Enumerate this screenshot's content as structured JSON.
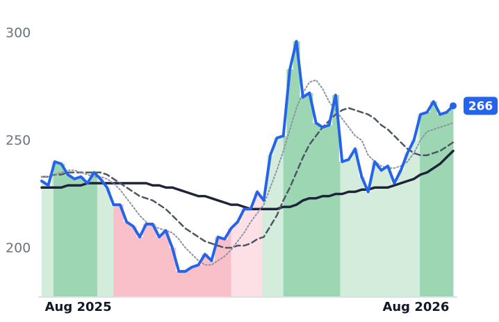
{
  "chart_data": {
    "type": "line",
    "x": [
      0,
      1,
      2,
      3,
      4,
      5,
      6,
      7,
      8,
      9,
      10,
      11,
      12,
      13,
      14,
      15,
      16,
      17,
      18,
      19,
      20,
      21,
      22,
      23,
      24,
      25,
      26,
      27,
      28,
      29,
      30,
      31,
      32,
      33,
      34,
      35,
      36,
      37,
      38,
      39,
      40,
      41,
      42,
      43,
      44,
      45,
      46,
      47,
      48,
      49,
      50,
      51,
      52,
      53,
      54,
      55,
      56,
      57,
      58,
      59,
      60,
      61,
      62,
      63
    ],
    "xlim": [
      0,
      63
    ],
    "xticks": [
      {
        "value": 5.6,
        "label": "Aug 2025"
      },
      {
        "value": 57.3,
        "label": "Aug 2026"
      }
    ],
    "ylim": [
      177.4,
      315.2
    ],
    "yticks": [
      200,
      250,
      300
    ],
    "regions": [
      {
        "from": 0,
        "to": 1.8,
        "color": "#d3ecdc"
      },
      {
        "from": 1.8,
        "to": 8.5,
        "color": "#9dd6b2"
      },
      {
        "from": 8.5,
        "to": 11,
        "color": "#d3ecdc"
      },
      {
        "from": 11,
        "to": 29,
        "color": "#f9c0ca"
      },
      {
        "from": 29,
        "to": 33.8,
        "color": "#fde0e5"
      },
      {
        "from": 33.8,
        "to": 37,
        "color": "#d3ecdc"
      },
      {
        "from": 37,
        "to": 45.7,
        "color": "#9dd6b2"
      },
      {
        "from": 45.7,
        "to": 57.9,
        "color": "#d3ecdc"
      },
      {
        "from": 57.9,
        "to": 63,
        "color": "#9dd6b2"
      }
    ],
    "series": [
      {
        "color": "#1e2338",
        "style": "solid",
        "width": 3.5,
        "values": [
          228,
          228,
          228,
          228,
          229,
          229,
          229,
          230,
          230,
          230,
          230,
          230,
          230,
          230,
          230,
          230,
          230,
          229,
          229,
          228,
          228,
          227,
          226,
          225,
          224,
          224,
          223,
          222,
          221,
          220,
          220,
          219,
          218,
          218,
          218,
          218,
          218,
          219,
          219,
          220,
          222,
          223,
          223,
          224,
          224,
          225,
          225,
          226,
          226,
          227,
          227,
          228,
          228,
          228,
          229,
          230,
          231,
          232,
          234,
          235,
          237,
          239,
          242,
          245
        ]
      },
      {
        "color": "#4b5563",
        "style": "dashed",
        "width": 2.5,
        "values": [
          233,
          233,
          234,
          234,
          235,
          235,
          235,
          235,
          235,
          235,
          234,
          232,
          230,
          228,
          226,
          224,
          223,
          222,
          220,
          218,
          215,
          212,
          209,
          207,
          205,
          203,
          202,
          201,
          200,
          200,
          201,
          201,
          202,
          204,
          205,
          210,
          215,
          222,
          228,
          235,
          242,
          248,
          252,
          256,
          259,
          262,
          264,
          265,
          264,
          263,
          262,
          260,
          257,
          255,
          252,
          249,
          246,
          244,
          243,
          243,
          244,
          245,
          247,
          249
        ]
      },
      {
        "color": "#8a94a6",
        "style": "dotted",
        "width": 2,
        "values": [
          233,
          233,
          234,
          235,
          236,
          236,
          235,
          234,
          233,
          233,
          232,
          230,
          227,
          223,
          219,
          215,
          212,
          210,
          209,
          208,
          207,
          204,
          200,
          197,
          194,
          192,
          192,
          194,
          196,
          199,
          203,
          207,
          212,
          216,
          220,
          228,
          236,
          245,
          255,
          265,
          272,
          277,
          278,
          274,
          268,
          264,
          260,
          256,
          252,
          250,
          243,
          240,
          238,
          237,
          237,
          238,
          240,
          244,
          250,
          254,
          255,
          256,
          257,
          258
        ]
      },
      {
        "color": "#2563eb",
        "style": "solid",
        "width": 4,
        "latest": true,
        "values": [
          231,
          229,
          240,
          239,
          234,
          232,
          233,
          230,
          235,
          232,
          228,
          220,
          220,
          212,
          210,
          205,
          211,
          211,
          205,
          208,
          200,
          189,
          189,
          191,
          192,
          197,
          194,
          205,
          204,
          209,
          212,
          218,
          218,
          226,
          222,
          243,
          251,
          252,
          283,
          296,
          270,
          272,
          258,
          256,
          257,
          271,
          240,
          241,
          246,
          233,
          226,
          240,
          236,
          238,
          230,
          236,
          244,
          250,
          262,
          263,
          268,
          262,
          263,
          266
        ]
      }
    ]
  }
}
